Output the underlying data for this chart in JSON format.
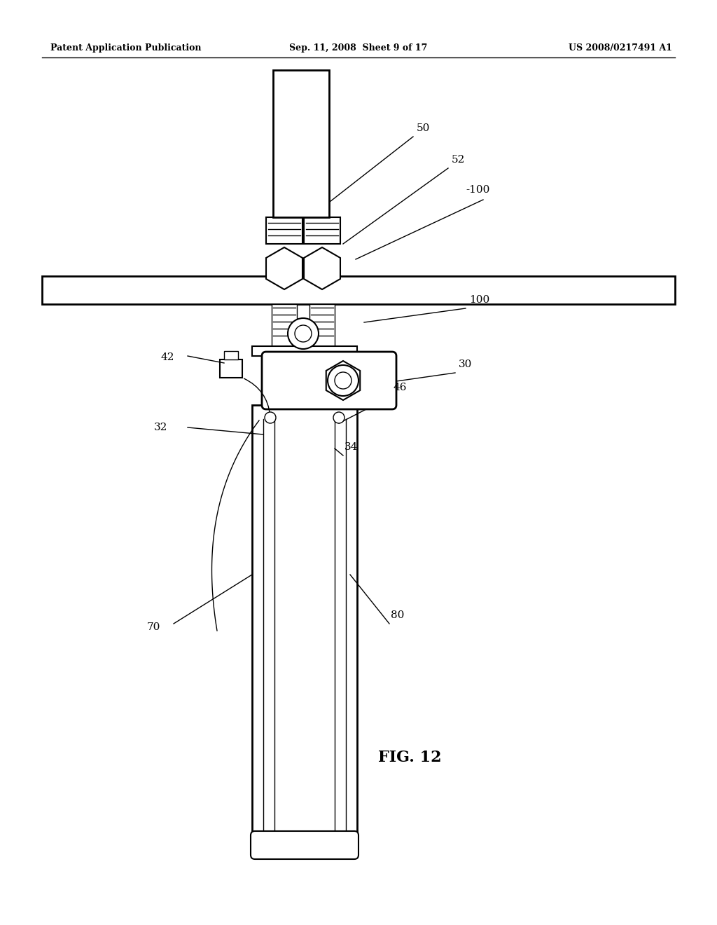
{
  "bg_color": "#ffffff",
  "line_color": "#000000",
  "header_left": "Patent Application Publication",
  "header_mid": "Sep. 11, 2008  Sheet 9 of 17",
  "header_right": "US 2008/0217491 A1",
  "fig_label": "FIG. 12"
}
